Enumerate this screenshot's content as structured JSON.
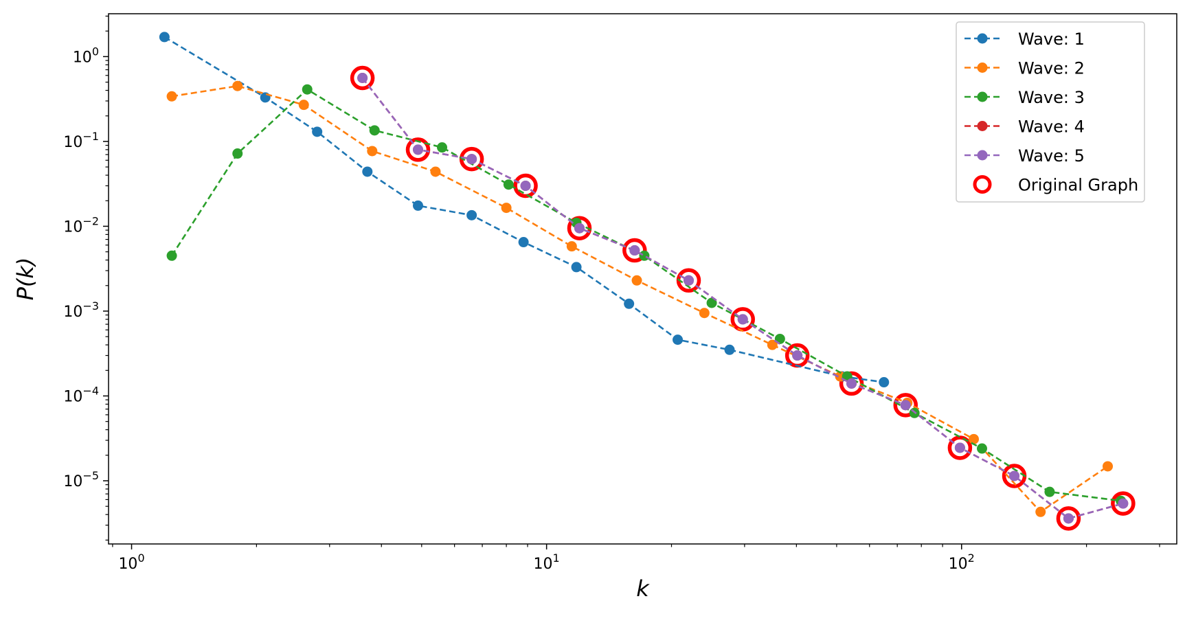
{
  "chart_data": {
    "type": "line",
    "title": "",
    "xlabel": "k",
    "ylabel": "P(k)",
    "xscale": "log",
    "yscale": "log",
    "xlim": [
      0.88,
      330
    ],
    "ylim": [
      1.8e-06,
      3.2
    ],
    "grid": false,
    "legend_position": "top-right",
    "x_tick_labels": [
      {
        "value": 1,
        "base": "10",
        "exp": "0"
      },
      {
        "value": 10,
        "base": "10",
        "exp": "1"
      },
      {
        "value": 100,
        "base": "10",
        "exp": "2"
      }
    ],
    "y_tick_labels": [
      {
        "value": 1,
        "base": "10",
        "exp": "0"
      },
      {
        "value": 0.1,
        "base": "10",
        "exp": "−1"
      },
      {
        "value": 0.01,
        "base": "10",
        "exp": "−2"
      },
      {
        "value": 0.001,
        "base": "10",
        "exp": "−3"
      },
      {
        "value": 0.0001,
        "base": "10",
        "exp": "−4"
      },
      {
        "value": 1e-05,
        "base": "10",
        "exp": "−5"
      }
    ],
    "series": [
      {
        "name": "Wave: 1",
        "color": "#1f77b4",
        "style": "dashed-marker",
        "x": [
          1.2,
          2.1,
          2.8,
          3.7,
          4.9,
          6.6,
          8.8,
          11.8,
          15.8,
          20.7,
          27.6,
          51.5,
          65
        ],
        "y": [
          1.7,
          0.33,
          0.13,
          0.044,
          0.0175,
          0.0135,
          0.0065,
          0.0033,
          0.00122,
          0.00046,
          0.00035,
          0.00017,
          0.000145
        ]
      },
      {
        "name": "Wave: 2",
        "color": "#ff7f0e",
        "style": "dashed-marker",
        "x": [
          1.25,
          1.8,
          2.6,
          3.8,
          5.4,
          8.0,
          11.5,
          16.5,
          24.0,
          35.0,
          51.0,
          74.0,
          107,
          155,
          225
        ],
        "y": [
          0.34,
          0.45,
          0.27,
          0.077,
          0.044,
          0.0165,
          0.0058,
          0.0023,
          0.00095,
          0.0004,
          0.00017,
          8.3e-05,
          3.1e-05,
          4.3e-06,
          1.48e-05
        ]
      },
      {
        "name": "Wave: 3",
        "color": "#2ca02c",
        "style": "dashed-marker",
        "x": [
          1.25,
          1.8,
          2.65,
          3.85,
          5.6,
          8.1,
          11.8,
          17.2,
          25.0,
          36.5,
          53.0,
          77.0,
          112,
          163,
          242
        ],
        "y": [
          0.0045,
          0.072,
          0.41,
          0.135,
          0.085,
          0.031,
          0.011,
          0.0045,
          0.00125,
          0.00047,
          0.00017,
          6.3e-05,
          2.4e-05,
          7.4e-06,
          5.8e-06
        ]
      },
      {
        "name": "Wave: 4",
        "color": "#d62728",
        "style": "dashed-marker",
        "x": [
          3.6,
          4.9,
          6.6,
          8.9,
          12.0,
          16.3,
          22.0,
          29.7,
          40.2,
          54.3,
          73.3,
          99.1,
          134,
          181,
          245
        ],
        "y": [
          0.56,
          0.08,
          0.062,
          0.03,
          0.0095,
          0.0052,
          0.0023,
          0.0008,
          0.0003,
          0.00014,
          7.8e-05,
          2.45e-05,
          1.14e-05,
          3.6e-06,
          5.4e-06
        ]
      },
      {
        "name": "Wave: 5",
        "color": "#9467bd",
        "style": "dashed-marker",
        "x": [
          3.6,
          4.9,
          6.6,
          8.9,
          12.0,
          16.3,
          22.0,
          29.7,
          40.2,
          54.3,
          73.3,
          99.1,
          134,
          181,
          245
        ],
        "y": [
          0.56,
          0.08,
          0.062,
          0.03,
          0.0095,
          0.0052,
          0.0023,
          0.0008,
          0.0003,
          0.00014,
          7.8e-05,
          2.45e-05,
          1.14e-05,
          3.6e-06,
          5.4e-06
        ]
      },
      {
        "name": "Original Graph",
        "color": "#ff0000",
        "style": "open-circle",
        "x": [
          3.6,
          4.9,
          6.6,
          8.9,
          12.0,
          16.3,
          22.0,
          29.7,
          40.2,
          54.3,
          73.3,
          99.1,
          134,
          181,
          245
        ],
        "y": [
          0.56,
          0.08,
          0.062,
          0.03,
          0.0095,
          0.0052,
          0.0023,
          0.0008,
          0.0003,
          0.00014,
          7.8e-05,
          2.45e-05,
          1.14e-05,
          3.6e-06,
          5.4e-06
        ]
      }
    ]
  }
}
